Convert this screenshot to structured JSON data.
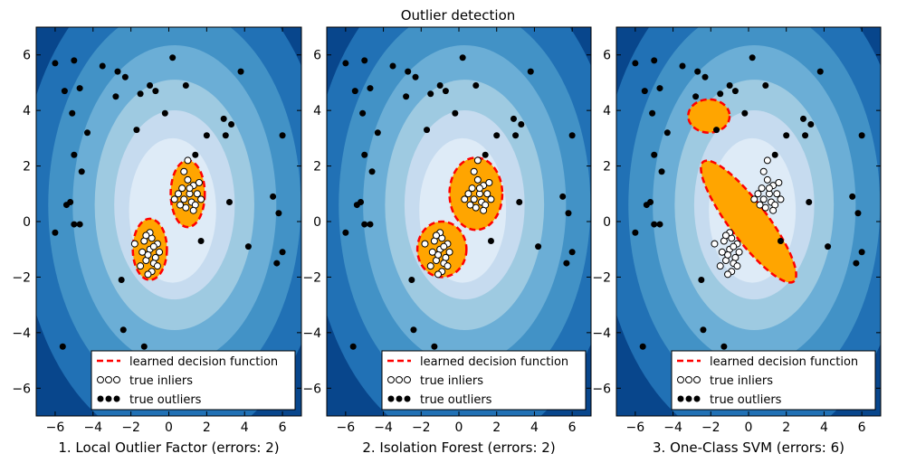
{
  "title": "Outlier detection",
  "legend": {
    "decision_label": "learned decision function",
    "inliers_label": "true inliers",
    "outliers_label": "true outliers"
  },
  "colors": {
    "contour_levels": [
      "#08468c",
      "#2171b5",
      "#4292c6",
      "#6baed6",
      "#9ecae1",
      "#c6dbef",
      "#deebf7"
    ],
    "inlier_region": "#ffa500",
    "decision_line": "#ff0000",
    "point_outlier": "#000000",
    "point_inlier_face": "#ffffff"
  },
  "chart_data": [
    {
      "type": "scatter",
      "xlabel": "1. Local Outlier Factor (errors: 2)",
      "xlim": [
        -7,
        7
      ],
      "ylim": [
        -7,
        7
      ],
      "xticks": [
        -6,
        -4,
        -2,
        0,
        2,
        4,
        6
      ],
      "yticks": [
        -6,
        -4,
        -2,
        0,
        2,
        4,
        6
      ],
      "legend_position": "lower right",
      "inlier_clusters": [
        {
          "center": [
            1.0,
            1.0
          ],
          "radius_x": 0.9,
          "radius_y": 1.2
        },
        {
          "center": [
            -1.0,
            -1.0
          ],
          "radius_x": 0.9,
          "radius_y": 1.1
        }
      ]
    },
    {
      "type": "scatter",
      "xlabel": "2. Isolation Forest (errors: 2)",
      "xlim": [
        -7,
        7
      ],
      "ylim": [
        -7,
        7
      ],
      "xticks": [
        -6,
        -4,
        -2,
        0,
        2,
        4,
        6
      ],
      "yticks": [
        -6,
        -4,
        -2,
        0,
        2,
        4,
        6
      ],
      "legend_position": "lower right",
      "inlier_clusters": [
        {
          "center": [
            0.9,
            1.0
          ],
          "radius_x": 1.4,
          "radius_y": 1.3
        },
        {
          "center": [
            -0.9,
            -1.0
          ],
          "radius_x": 1.3,
          "radius_y": 1.0
        }
      ]
    },
    {
      "type": "scatter",
      "xlabel": "3. One-Class SVM (errors: 6)",
      "xlim": [
        -7,
        7
      ],
      "ylim": [
        -7,
        7
      ],
      "xticks": [
        -6,
        -4,
        -2,
        0,
        2,
        4,
        6
      ],
      "yticks": [
        -6,
        -4,
        -2,
        0,
        2,
        4,
        6
      ],
      "legend_position": "lower right",
      "inlier_clusters": [
        {
          "center": [
            0.0,
            0.0
          ],
          "radius_x": 1.0,
          "radius_y": 2.7,
          "rotate_deg": -37
        },
        {
          "center": [
            -2.1,
            3.8
          ],
          "radius_x": 1.1,
          "radius_y": 0.6
        }
      ]
    }
  ],
  "points": {
    "outliers": [
      [
        -6.0,
        5.7
      ],
      [
        -5.0,
        5.8
      ],
      [
        -5.5,
        4.7
      ],
      [
        -4.7,
        4.8
      ],
      [
        -3.5,
        5.6
      ],
      [
        -2.7,
        5.4
      ],
      [
        -2.3,
        5.2
      ],
      [
        -2.8,
        4.5
      ],
      [
        -1.5,
        4.6
      ],
      [
        -1.0,
        4.9
      ],
      [
        -0.7,
        4.7
      ],
      [
        0.2,
        5.9
      ],
      [
        0.9,
        4.9
      ],
      [
        3.8,
        5.4
      ],
      [
        -5.1,
        3.9
      ],
      [
        -4.3,
        3.2
      ],
      [
        -1.7,
        3.3
      ],
      [
        -0.2,
        3.9
      ],
      [
        2.9,
        3.7
      ],
      [
        3.3,
        3.5
      ],
      [
        2.0,
        3.1
      ],
      [
        3.0,
        3.1
      ],
      [
        6.0,
        3.1
      ],
      [
        -5.0,
        2.4
      ],
      [
        -4.6,
        1.8
      ],
      [
        1.4,
        2.4
      ],
      [
        -5.4,
        0.6
      ],
      [
        -5.2,
        0.7
      ],
      [
        -5.0,
        -0.1
      ],
      [
        -4.7,
        -0.1
      ],
      [
        3.2,
        0.7
      ],
      [
        5.5,
        0.9
      ],
      [
        5.8,
        0.3
      ],
      [
        -6.0,
        -0.4
      ],
      [
        1.7,
        -0.7
      ],
      [
        4.2,
        -0.9
      ],
      [
        6.0,
        -1.1
      ],
      [
        5.7,
        -1.5
      ],
      [
        -2.5,
        -2.1
      ],
      [
        -2.4,
        -3.9
      ],
      [
        -1.3,
        -4.5
      ],
      [
        -5.6,
        -4.5
      ]
    ],
    "inliers": [
      [
        0.7,
        1.2
      ],
      [
        1.0,
        1.5
      ],
      [
        1.3,
        1.3
      ],
      [
        1.5,
        1.0
      ],
      [
        1.2,
        0.7
      ],
      [
        0.8,
        0.8
      ],
      [
        0.5,
        1.0
      ],
      [
        1.1,
        1.0
      ],
      [
        0.9,
        0.5
      ],
      [
        1.4,
        0.6
      ],
      [
        0.6,
        0.6
      ],
      [
        1.6,
        1.4
      ],
      [
        1.0,
        2.2
      ],
      [
        0.8,
        1.8
      ],
      [
        1.3,
        0.4
      ],
      [
        0.3,
        0.8
      ],
      [
        1.7,
        0.8
      ],
      [
        1.1,
        1.2
      ],
      [
        -1.0,
        -1.0
      ],
      [
        -1.3,
        -0.7
      ],
      [
        -0.7,
        -1.3
      ],
      [
        -0.9,
        -0.6
      ],
      [
        -1.2,
        -1.4
      ],
      [
        -0.6,
        -0.8
      ],
      [
        -1.1,
        -1.2
      ],
      [
        -0.8,
        -1.5
      ],
      [
        -1.4,
        -1.1
      ],
      [
        -0.5,
        -1.1
      ],
      [
        -1.0,
        -0.4
      ],
      [
        -1.2,
        -0.5
      ],
      [
        -0.9,
        -1.8
      ],
      [
        -1.5,
        -1.6
      ],
      [
        -0.6,
        -1.6
      ],
      [
        -0.8,
        -0.9
      ],
      [
        -1.8,
        -0.8
      ],
      [
        -1.1,
        -1.9
      ]
    ]
  }
}
